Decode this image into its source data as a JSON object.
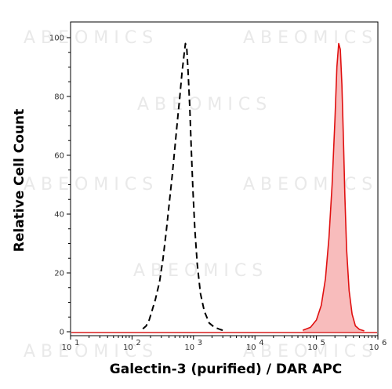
{
  "watermark": "ABEOMICS",
  "chart_data": {
    "type": "area",
    "xlabel": "Galectin-3 (purified) / DAR APC",
    "ylabel": "Relative Cell Count",
    "x_scale": "log",
    "xlim": [
      10,
      1000000
    ],
    "ylim": [
      0,
      100
    ],
    "x_ticks": [
      {
        "base": "10",
        "exp": "1"
      },
      {
        "base": "10",
        "exp": "2"
      },
      {
        "base": "10",
        "exp": "3"
      },
      {
        "base": "10",
        "exp": "4"
      },
      {
        "base": "10",
        "exp": "5"
      },
      {
        "base": "10",
        "exp": "6"
      }
    ],
    "y_ticks": [
      "0",
      "20",
      "40",
      "60",
      "80",
      "100"
    ],
    "grid": false,
    "colors": {
      "control": "#000000",
      "stained_line": "#e01010",
      "stained_fill": "#f8bcbc",
      "baseline": "#d81e1e"
    },
    "series": [
      {
        "style": "dashed-line",
        "x": [
          150,
          170,
          190,
          210,
          240,
          280,
          320,
          360,
          400,
          450,
          500,
          550,
          600,
          650,
          700,
          740,
          780,
          820,
          870,
          920,
          980,
          1050,
          1150,
          1300,
          1500,
          1800,
          2200,
          2700,
          3200
        ],
        "y": [
          1,
          2,
          4,
          7,
          11,
          17,
          25,
          34,
          43,
          53,
          63,
          72,
          80,
          88,
          94,
          98,
          96,
          88,
          76,
          62,
          48,
          35,
          23,
          13,
          7,
          3,
          1.5,
          0.8,
          0.3
        ]
      },
      {
        "style": "filled-area",
        "x": [
          60000,
          80000,
          100000,
          120000,
          140000,
          160000,
          180000,
          200000,
          215000,
          230000,
          245000,
          260000,
          275000,
          290000,
          310000,
          340000,
          380000,
          430000,
          500000,
          600000
        ],
        "y": [
          0.5,
          1.5,
          4,
          9,
          18,
          32,
          50,
          72,
          90,
          98,
          96,
          84,
          66,
          46,
          28,
          14,
          6,
          2,
          0.8,
          0.3
        ]
      }
    ]
  }
}
